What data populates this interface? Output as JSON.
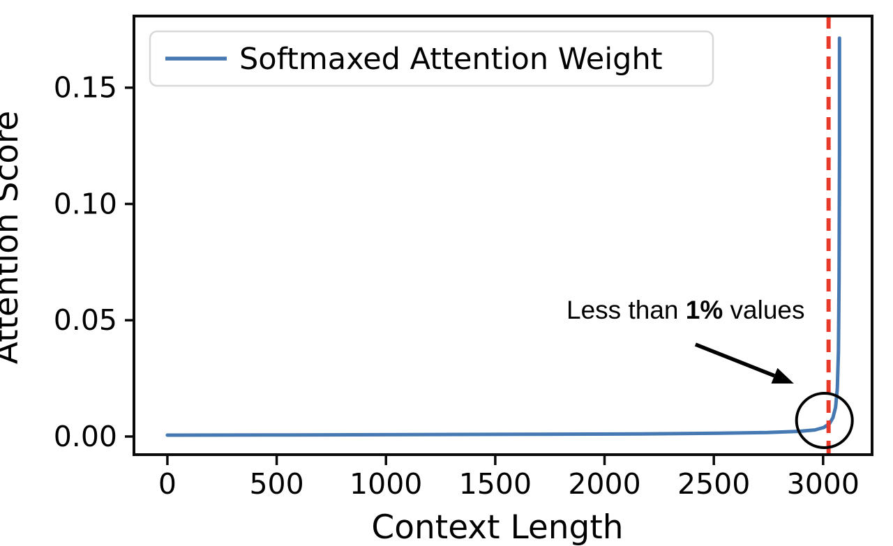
{
  "figure": {
    "background": "#ffffff",
    "text_color": "#000000",
    "spine_color": "#0a0a0a"
  },
  "chart_data": {
    "type": "line",
    "title": "",
    "xlabel": "Context Length",
    "ylabel": "Attention Score",
    "xlim": [
      -153,
      3224
    ],
    "ylim": [
      -0.0078,
      0.1808
    ],
    "x_ticks": [
      0,
      500,
      1000,
      1500,
      2000,
      2500,
      3000
    ],
    "x_tick_labels": [
      "0",
      "500",
      "1000",
      "1500",
      "2000",
      "2500",
      "3000"
    ],
    "y_ticks": [
      0.0,
      0.05,
      0.1,
      0.15
    ],
    "y_tick_labels": [
      "0.00",
      "0.05",
      "0.10",
      "0.15"
    ],
    "grid": false,
    "legend": {
      "position": "upper left",
      "entries": [
        {
          "label": "Softmaxed Attention Weight",
          "color": "#4678b2"
        }
      ]
    },
    "series": [
      {
        "name": "Softmaxed Attention Weight",
        "color": "#4678b2",
        "line_width": 5,
        "points": [
          [
            0,
            0.0006
          ],
          [
            574,
            0.0007
          ],
          [
            1149,
            0.0008
          ],
          [
            1723,
            0.001
          ],
          [
            2170,
            0.0011
          ],
          [
            2521,
            0.0014
          ],
          [
            2745,
            0.0017
          ],
          [
            2888,
            0.0022
          ],
          [
            2962,
            0.0028
          ],
          [
            3003,
            0.0039
          ],
          [
            3029,
            0.0055
          ],
          [
            3045,
            0.0081
          ],
          [
            3057,
            0.0126
          ],
          [
            3065,
            0.0207
          ],
          [
            3070,
            0.0365
          ],
          [
            3073,
            0.068
          ],
          [
            3075,
            0.1219
          ],
          [
            3075,
            0.1713
          ]
        ]
      }
    ],
    "vline": {
      "x": 3025,
      "color": "#e8392b",
      "style": "dashed",
      "line_width": 6,
      "dash": [
        18,
        11
      ]
    },
    "annotation": {
      "text": "Less than 1% values",
      "parts": [
        {
          "text": "Less than ",
          "bold": false
        },
        {
          "text": "1%",
          "bold": true
        },
        {
          "text": " values",
          "bold": false
        }
      ],
      "color": "#000000",
      "text_pos": [
        2371,
        0.0506
      ],
      "arrow_from": [
        2416,
        0.0396
      ],
      "arrow_to": [
        2866,
        0.0228
      ],
      "circle_center": [
        3006,
        0.0069
      ],
      "circle_radius_px": 40
    }
  }
}
